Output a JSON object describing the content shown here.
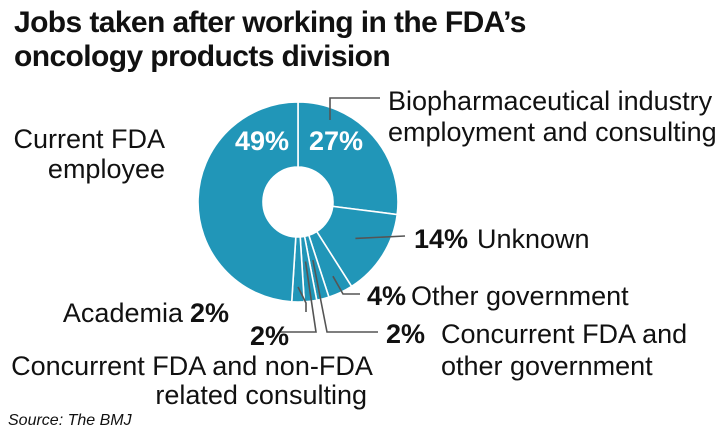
{
  "title_line1": "Jobs taken after working in the FDA’s",
  "title_line2": "oncology products division",
  "source": "Source: The BMJ",
  "colors": {
    "slice": "#2196b8",
    "divider": "#ffffff",
    "leader": "#555555",
    "text": "#111111"
  },
  "chart_data": {
    "type": "pie",
    "donut": true,
    "title": "Jobs taken after working in the FDA’s oncology products division",
    "unit": "%",
    "categories": [
      "Biopharmaceutical industry employment and consulting",
      "Unknown",
      "Other government",
      "Concurrent FDA and other government",
      "Concurrent FDA and non-FDA related consulting",
      "Academia",
      "Current FDA employee"
    ],
    "values": [
      27,
      14,
      4,
      2,
      2,
      2,
      49
    ],
    "value_labels": [
      "27%",
      "14%",
      "4%",
      "2%",
      "2%",
      "2%",
      "49%"
    ],
    "label_lines": [
      [
        "Biopharmaceutical industry",
        "employment and consulting"
      ],
      [
        "Unknown"
      ],
      [
        "Other government"
      ],
      [
        "Concurrent FDA and",
        "other government"
      ],
      [
        "Concurrent FDA and non-FDA",
        "related consulting"
      ],
      [
        "Academia"
      ],
      [
        "Current FDA",
        "employee"
      ]
    ]
  }
}
